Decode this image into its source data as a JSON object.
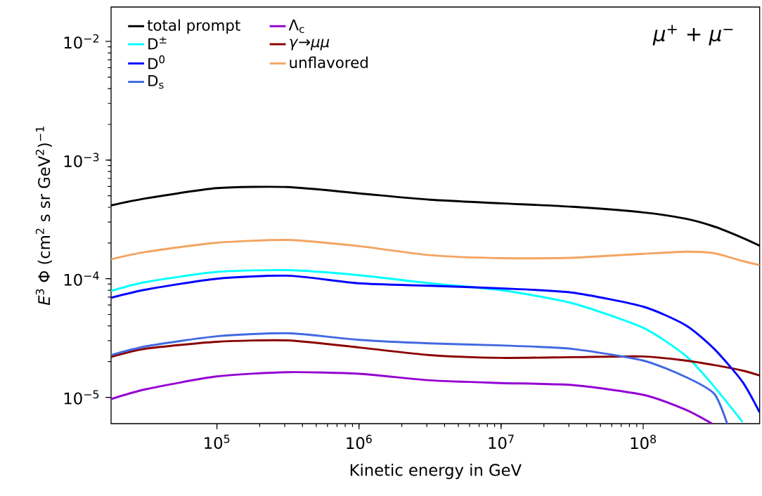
{
  "chart_data": {
    "type": "line",
    "xlabel": "Kinetic energy in GeV",
    "ylabel": "*E*$^{3}$ Φ (cm$^{2}$ s sr GeV$^{2}$)$^{−1}$",
    "log": "xy",
    "legend": "top left",
    "xlim": [
      18000,
      660000000
    ],
    "ylim": [
      6e-06,
      0.0195
    ],
    "xticks": [
      {
        "value": 100000,
        "label": "10$^{5}$"
      },
      {
        "value": 1000000,
        "label": "10$^{6}$"
      },
      {
        "value": 10000000,
        "label": "10$^{7}$"
      },
      {
        "value": 100000000,
        "label": "10$^{8}$"
      }
    ],
    "yticks": [
      {
        "value": 1e-05,
        "label": "10$^{−5}$"
      },
      {
        "value": 0.0001,
        "label": "10$^{−4}$"
      },
      {
        "value": 0.001,
        "label": "10$^{−3}$"
      },
      {
        "value": 0.01,
        "label": "10$^{−2}$"
      }
    ],
    "annotations": [
      "*μ*$^{+}$ + *μ*$^{−}$"
    ],
    "series": [
      {
        "name": "total prompt",
        "color": "#000000",
        "x": [
          18000,
          31600,
          100000,
          316000,
          1000000,
          3160000,
          10000000,
          31600000,
          100000000,
          200000000,
          316000000,
          500000000,
          660000000
        ],
        "values": [
          0.000415,
          0.000475,
          0.00058,
          0.000592,
          0.000524,
          0.000463,
          0.000432,
          0.000404,
          0.000362,
          0.00032,
          0.000275,
          0.000221,
          0.00019
        ]
      },
      {
        "name": "D$^{±}$",
        "color": "#00ffff",
        "x": [
          18000,
          31600,
          100000,
          316000,
          1000000,
          3160000,
          10000000,
          31600000,
          100000000,
          200000000,
          316000000,
          500000000
        ],
        "values": [
          7.89e-05,
          9.36e-05,
          0.000114,
          0.000118,
          0.000107,
          9.14e-05,
          8e-05,
          6.22e-05,
          3.85e-05,
          2.23e-05,
          1.23e-05,
          6.2e-06
        ]
      },
      {
        "name": "D$^{0}$",
        "color": "#0000ff",
        "x": [
          18000,
          31600,
          100000,
          316000,
          1000000,
          3160000,
          10000000,
          31600000,
          100000000,
          200000000,
          316000000,
          500000000,
          660000000
        ],
        "values": [
          6.91e-05,
          8.09e-05,
          0.0001,
          0.000106,
          9.14e-05,
          8.72e-05,
          8.29e-05,
          7.64e-05,
          5.81e-05,
          4.04e-05,
          2.56e-05,
          1.35e-05,
          7.46e-06
        ]
      },
      {
        "name": "D$_{s}$",
        "color": "#4169e1",
        "x": [
          18000,
          31600,
          100000,
          316000,
          1000000,
          3160000,
          10000000,
          31600000,
          100000000,
          200000000,
          316000000,
          390000000
        ],
        "values": [
          2.27e-05,
          2.69e-05,
          3.27e-05,
          3.47e-05,
          3.05e-05,
          2.85e-05,
          2.74e-05,
          2.56e-05,
          2.04e-05,
          1.48e-05,
          1.07e-05,
          6e-06
        ]
      },
      {
        "name": "Λ$_{c}$",
        "color": "#9400d3",
        "x": [
          18000,
          31600,
          100000,
          316000,
          1000000,
          3160000,
          10000000,
          31600000,
          100000000,
          200000000,
          305000000
        ],
        "values": [
          9.66e-06,
          1.17e-05,
          1.5e-05,
          1.63e-05,
          1.58e-05,
          1.39e-05,
          1.32e-05,
          1.27e-05,
          1.05e-05,
          7.85e-06,
          6e-06
        ]
      },
      {
        "name": "*γ*→*μμ*",
        "color": "#8b0000",
        "x": [
          18000,
          31600,
          100000,
          316000,
          1000000,
          3160000,
          10000000,
          31600000,
          100000000,
          200000000,
          316000000,
          500000000,
          660000000
        ],
        "values": [
          2.19e-05,
          2.57e-05,
          2.94e-05,
          3.02e-05,
          2.63e-05,
          2.27e-05,
          2.15e-05,
          2.18e-05,
          2.21e-05,
          2.04e-05,
          1.87e-05,
          1.68e-05,
          1.53e-05
        ]
      },
      {
        "name": "unflavored",
        "color": "#f4a460",
        "x": [
          18000,
          31600,
          100000,
          316000,
          1000000,
          3160000,
          10000000,
          31600000,
          100000000,
          200000000,
          316000000,
          500000000,
          660000000
        ],
        "values": [
          0.000146,
          0.000168,
          0.000201,
          0.000212,
          0.000188,
          0.000158,
          0.000149,
          0.00015,
          0.000162,
          0.000169,
          0.000164,
          0.000141,
          0.00013
        ]
      }
    ]
  }
}
